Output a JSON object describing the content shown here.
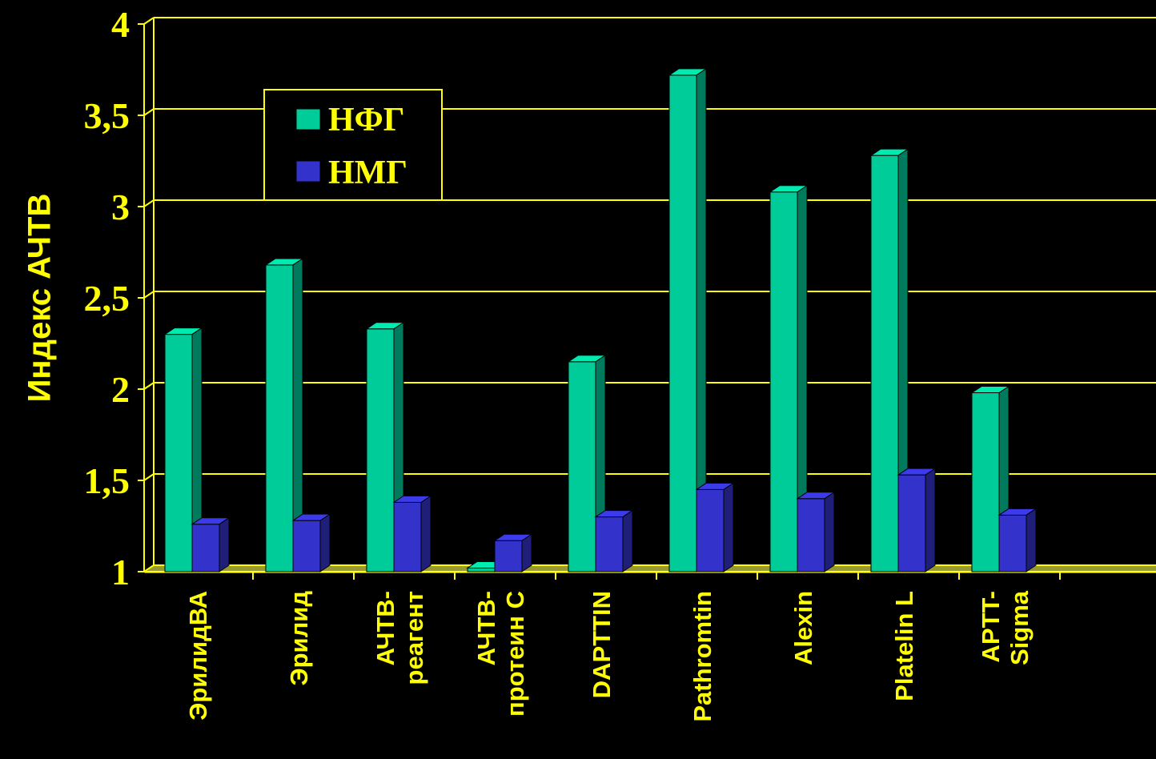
{
  "chart_data": {
    "type": "bar",
    "ylabel": "Индекс АЧТВ",
    "ylim": [
      1,
      4
    ],
    "yticks": [
      "1",
      "1,5",
      "2",
      "2,5",
      "3",
      "3,5",
      "4"
    ],
    "ytick_values": [
      1,
      1.5,
      2,
      2.5,
      3,
      3.5,
      4
    ],
    "categories": [
      [
        "ЭрилидВА"
      ],
      [
        "Эрилид"
      ],
      [
        "АЧТВ-",
        "реагент"
      ],
      [
        "АЧТВ-",
        "протеин С"
      ],
      [
        "DAPTTIN"
      ],
      [
        "Pathromtin"
      ],
      [
        "Alexin"
      ],
      [
        "Platelin L"
      ],
      [
        "APTT-",
        "Sigma"
      ]
    ],
    "series": [
      {
        "name": "НФГ",
        "color": "#00cc99",
        "values": [
          2.3,
          2.68,
          2.33,
          1.02,
          2.15,
          3.72,
          3.08,
          3.28,
          1.98
        ]
      },
      {
        "name": "НМГ",
        "color": "#3333cc",
        "values": [
          1.26,
          1.28,
          1.38,
          1.17,
          1.3,
          1.45,
          1.4,
          1.53,
          1.31
        ]
      }
    ],
    "grid": true,
    "legend_position": "top-left",
    "colors": {
      "background": "#000000",
      "axis": "#ffff00",
      "floor": "#999933"
    }
  }
}
